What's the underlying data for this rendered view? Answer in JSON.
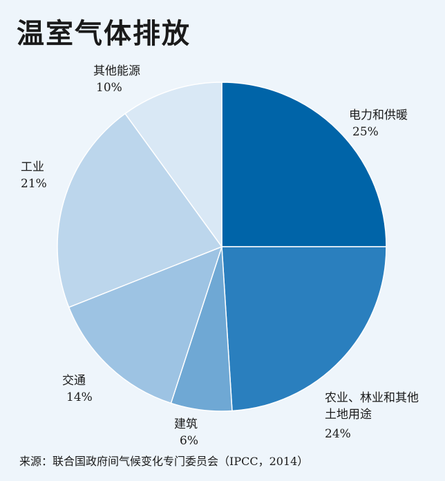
{
  "title": "温室气体排放",
  "source": "来源：联合国政府间气候变化专门委员会（IPCC，2014）",
  "chart_data": {
    "type": "pie",
    "title": "温室气体排放",
    "slices": [
      {
        "label": "电力和供暖",
        "label_lines": [
          "电力和供暖"
        ],
        "value": 25,
        "value_label": "25%",
        "color": "#0064a8"
      },
      {
        "label": "农业、林业和其他土地用途",
        "label_lines": [
          "农业、林业和其他",
          "土地用途"
        ],
        "value": 24,
        "value_label": "24%",
        "color": "#2a7fbe"
      },
      {
        "label": "建筑",
        "label_lines": [
          "建筑"
        ],
        "value": 6,
        "value_label": "6%",
        "color": "#6fa8d4"
      },
      {
        "label": "交通",
        "label_lines": [
          "交通"
        ],
        "value": 14,
        "value_label": "14%",
        "color": "#9dc3e3"
      },
      {
        "label": "工业",
        "label_lines": [
          "工业"
        ],
        "value": 21,
        "value_label": "21%",
        "color": "#bcd6ec"
      },
      {
        "label": "其他能源",
        "label_lines": [
          "其他能源"
        ],
        "value": 10,
        "value_label": "10%",
        "color": "#d9e8f5"
      }
    ]
  }
}
